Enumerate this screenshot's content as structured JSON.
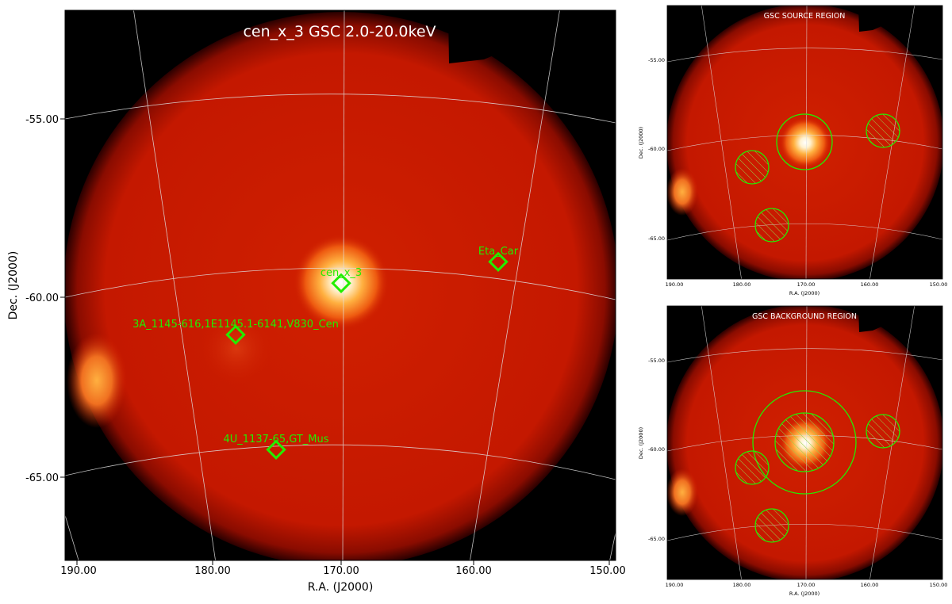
{
  "main": {
    "title": "cen_x_3 GSC 2.0-20.0keV",
    "xlabel": "R.A. (J2000)",
    "ylabel": "Dec. (J2000)",
    "xticks": [
      "190.00",
      "180.00",
      "170.00",
      "160.00",
      "150.00"
    ],
    "yticks": [
      "-55.00",
      "-60.00",
      "-65.00"
    ],
    "sources": [
      {
        "label": "cen_x_3"
      },
      {
        "label": "Eta_Car"
      },
      {
        "label": "3A_1145-616,1E1145.1-6141,V830_Cen"
      },
      {
        "label": "4U_1137-65,GT_Mus"
      }
    ]
  },
  "source_region": {
    "title": "GSC SOURCE REGION",
    "xlabel": "R.A. (J2000)",
    "ylabel": "Dec. (J2000)",
    "xticks": [
      "190.00",
      "180.00",
      "170.00",
      "160.00",
      "150.00"
    ],
    "yticks": [
      "-55.00",
      "-60.00",
      "-65.00"
    ]
  },
  "background_region": {
    "title": "GSC BACKGROUND REGION",
    "xlabel": "R.A. (J2000)",
    "ylabel": "Dec. (J2000)",
    "xticks": [
      "190.00",
      "180.00",
      "170.00",
      "160.00",
      "150.00"
    ],
    "yticks": [
      "-55.00",
      "-60.00",
      "-65.00"
    ]
  },
  "colors": {
    "sky_fill": "#c81400",
    "bright_source": "#ffffff",
    "marker": "#22ee00",
    "grid": "#dddddd",
    "background": "#000000"
  }
}
